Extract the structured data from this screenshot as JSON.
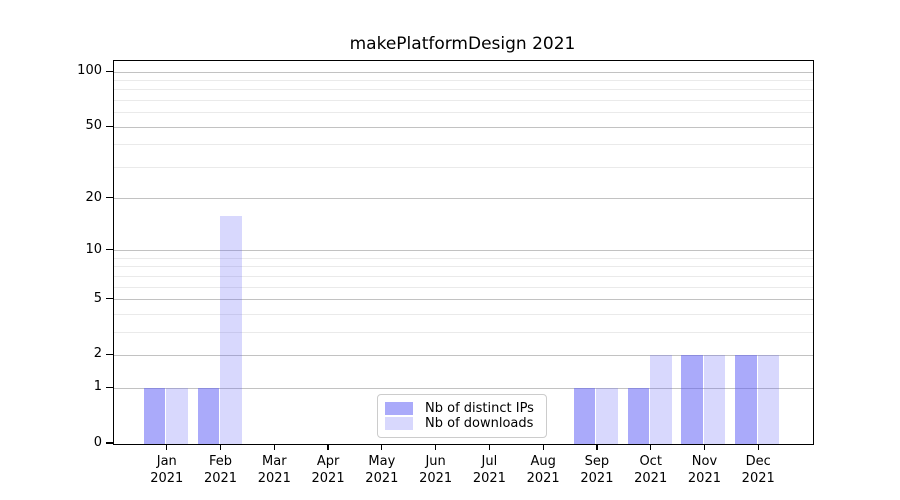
{
  "chart_data": {
    "type": "bar",
    "title": "makePlatformDesign 2021",
    "categories": [
      "Jan 2021",
      "Feb 2021",
      "Mar 2021",
      "Apr 2021",
      "May 2021",
      "Jun 2021",
      "Jul 2021",
      "Aug 2021",
      "Sep 2021",
      "Oct 2021",
      "Nov 2021",
      "Dec 2021"
    ],
    "series": [
      {
        "name": "Nb of distinct IPs",
        "color": "rgba(85,85,245,0.5)",
        "values": [
          1,
          1,
          0,
          0,
          0,
          0,
          0,
          0,
          1,
          1,
          2,
          2
        ]
      },
      {
        "name": "Nb of downloads",
        "color": "rgba(85,85,245,0.23)",
        "values": [
          1,
          16,
          0,
          0,
          0,
          0,
          0,
          0,
          1,
          2,
          2,
          2
        ]
      }
    ],
    "yscale": "log1p",
    "ylim": [
      0,
      115
    ],
    "yticks": [
      0,
      1,
      2,
      5,
      10,
      20,
      50,
      100
    ],
    "yticks_minor": [
      3,
      4,
      6,
      7,
      8,
      9,
      30,
      40,
      60,
      70,
      80,
      90
    ],
    "grid": "horizontal",
    "legend_position": "lower center"
  },
  "colors": {
    "grid_major": "#c2c2c2",
    "grid_minor": "#eaeaea",
    "axis": "#000000"
  }
}
